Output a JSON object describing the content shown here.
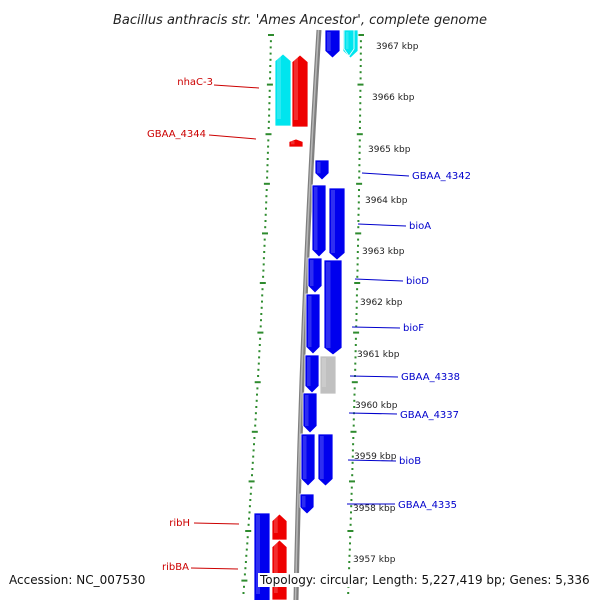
{
  "title": "Bacillus anthracis str. 'Ames Ancestor', complete genome",
  "accession_text": "Accession: NC_007530",
  "summary_text": "Topology: circular; Length: 5,227,419 bp; Genes: 5,336",
  "colors": {
    "cds_forward": "#0000ee",
    "cds_reverse": "#ee0000",
    "rna": "#00e5ee",
    "other": "#c0c0c0",
    "backbone": "#808080",
    "tick": "#2e8b2e",
    "label_forward": "#0000cc",
    "label_reverse": "#cc0000"
  },
  "kbp_labels": [
    "3967 kbp",
    "3966 kbp",
    "3965 kbp",
    "3964 kbp",
    "3963 kbp",
    "3962 kbp",
    "3961 kbp",
    "3960 kbp",
    "3959 kbp",
    "3958 kbp",
    "3957 kbp"
  ],
  "genes_left": [
    "nhaC-3",
    "GBAA_4344",
    "ribH",
    "ribBA"
  ],
  "genes_right": [
    "GBAA_4342",
    "bioA",
    "bioD",
    "bioF",
    "GBAA_4338",
    "GBAA_4337",
    "bioB",
    "GBAA_4335"
  ]
}
